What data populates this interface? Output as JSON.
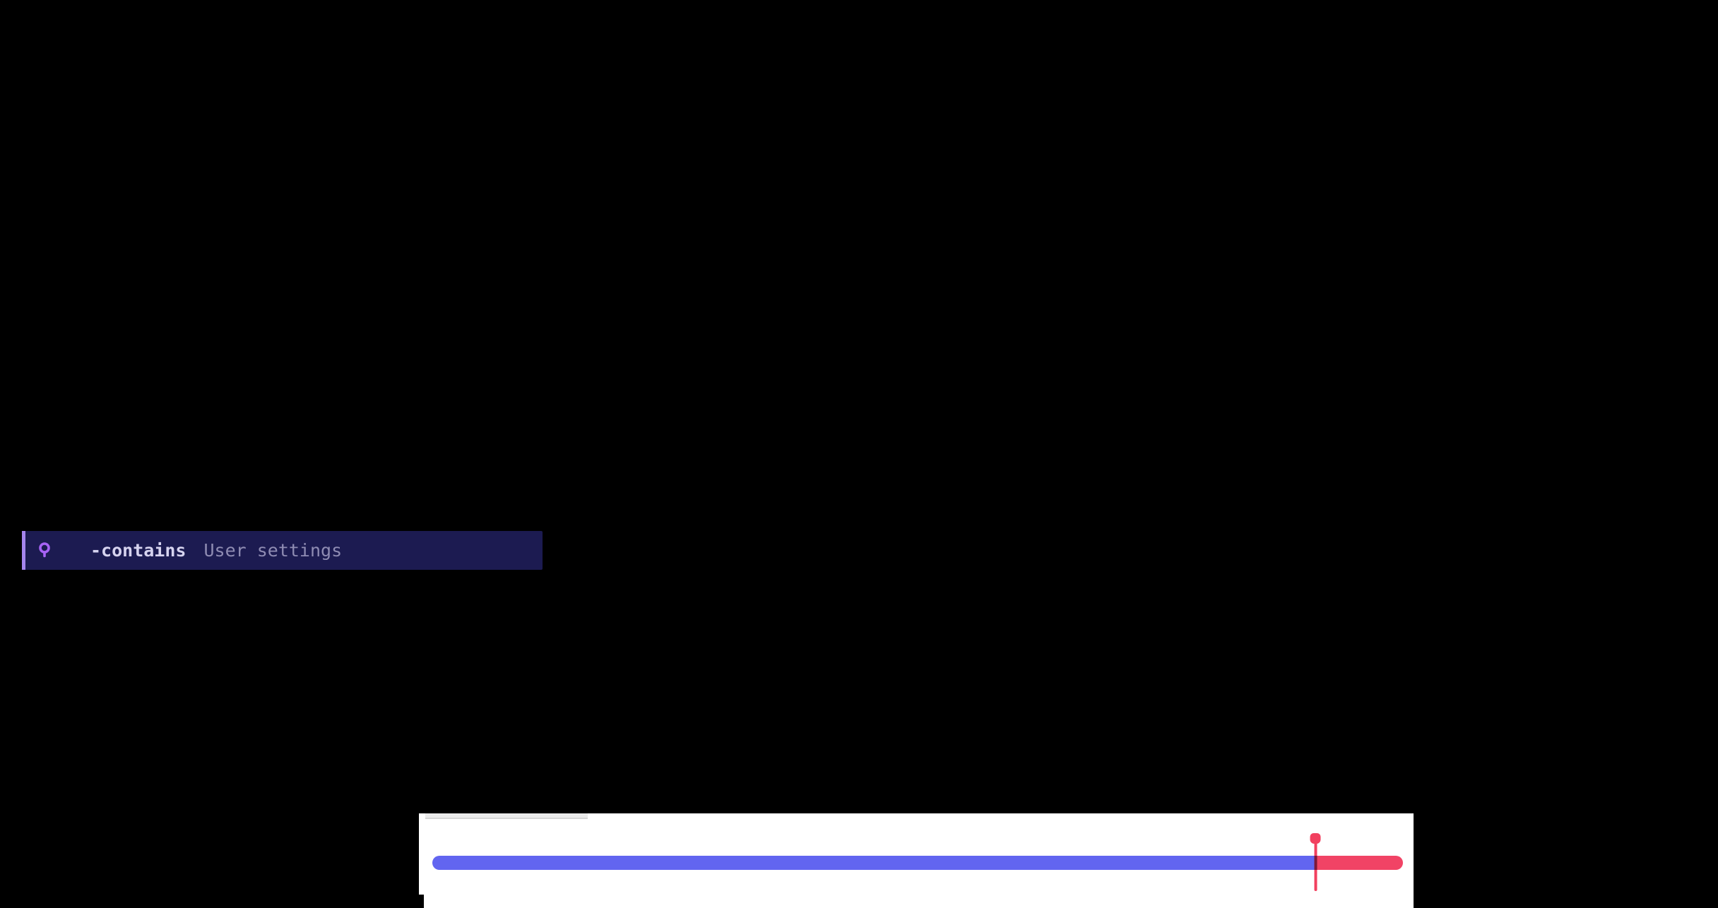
{
  "filter_bar": {
    "operator": "-contains",
    "value": "User settings",
    "icon": "location-pin-icon"
  },
  "player_panel": {
    "seekbar": {
      "progress_percent": 91
    }
  },
  "colors": {
    "page-bg": "#000000",
    "filter-bg": "#1c1b51",
    "filter-border": "#a585ee",
    "filter-icon": "#a763f5",
    "filter-op": "#d6d3ef",
    "filter-val": "#8f8cb3",
    "panel-bg": "#ffffff",
    "tab-bg": "#ebebeb",
    "tab-edge": "#d6d6d6",
    "seek-played": "#6265f0",
    "seek-rest": "#f14365",
    "playhead": "#f2405f",
    "playhead-overlap": "#7c1838"
  }
}
